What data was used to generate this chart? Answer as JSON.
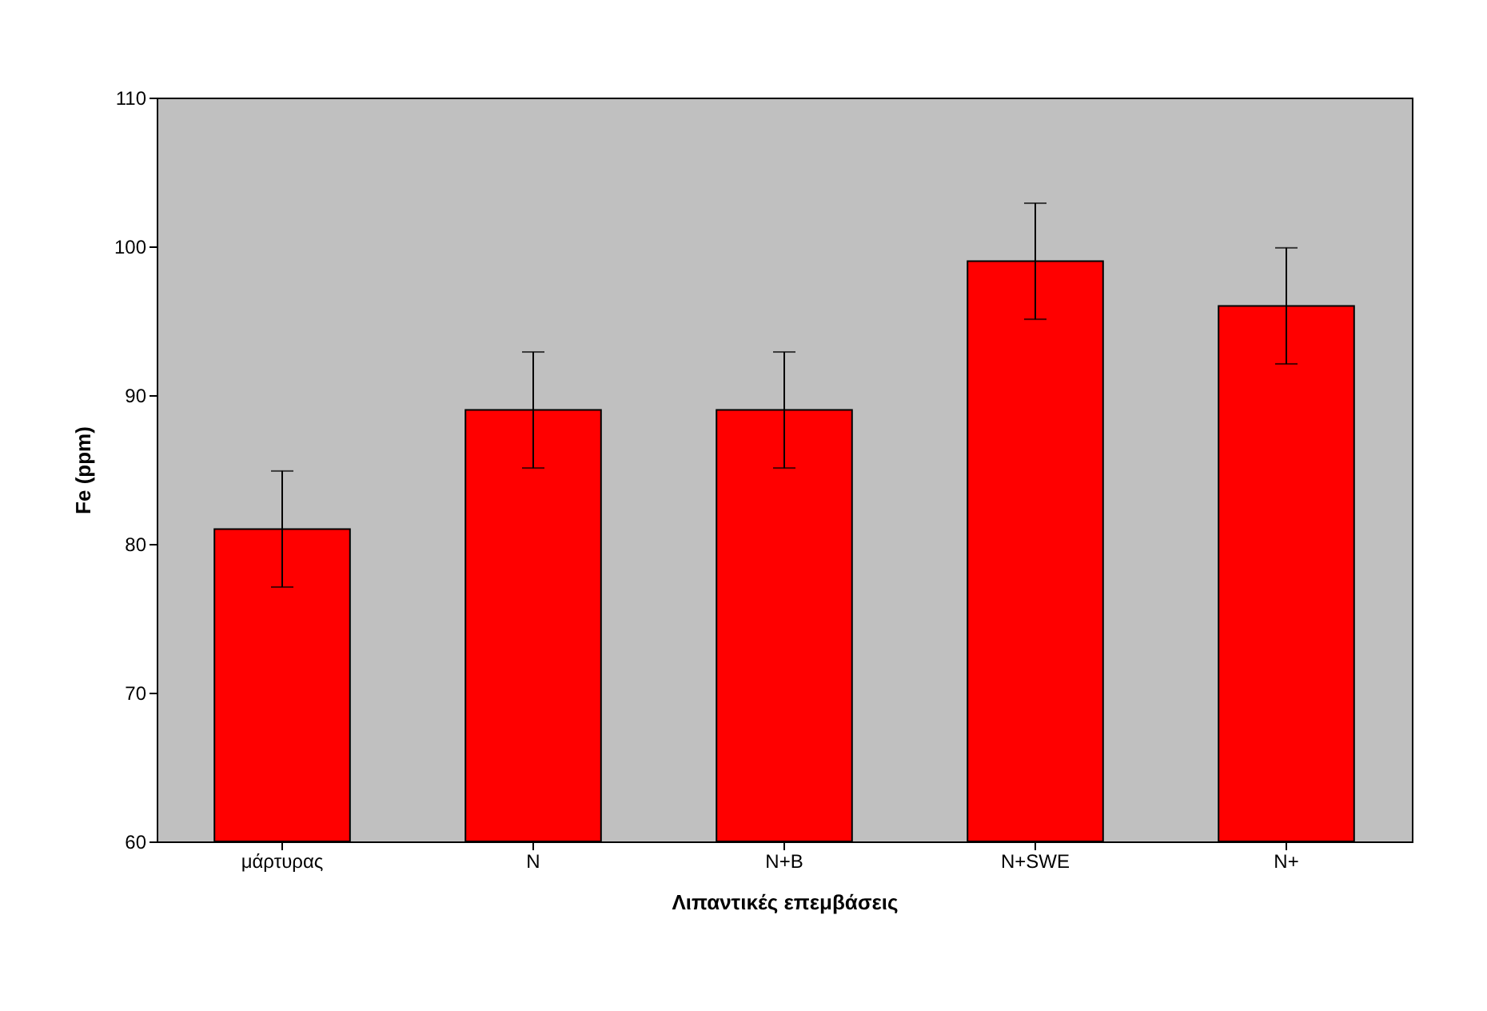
{
  "chart_data": {
    "type": "bar",
    "xlabel": "Λιπαντικές επεμβάσεις",
    "ylabel": "Fe (ppm)",
    "categories": [
      "μάρτυρας",
      "N",
      "N+B",
      "N+SWE",
      "N+"
    ],
    "values": [
      81,
      89,
      89,
      99,
      96
    ],
    "errors": [
      3.9,
      3.9,
      3.9,
      3.9,
      3.9
    ],
    "color": "#ff0000",
    "ylim": [
      60,
      110
    ],
    "yticks": [
      60,
      70,
      80,
      90,
      100,
      110
    ],
    "grid": false
  }
}
